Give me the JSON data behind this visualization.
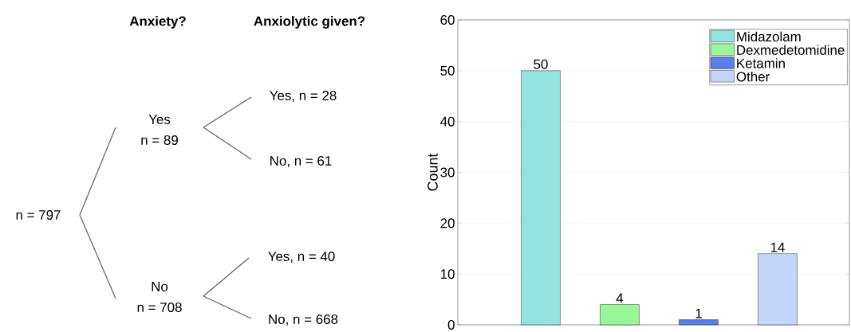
{
  "chart_data": [
    {
      "type": "other",
      "annotations": [
        "Anxiety?",
        "Anxiolytic given?",
        "n = 797",
        "Yes",
        "n = 89",
        "Yes, n = 28",
        "No, n = 61",
        "No",
        "n = 708",
        "Yes, n = 40",
        "No, n = 668"
      ]
    },
    {
      "type": "bar",
      "ylabel": "Count",
      "categories": [
        null,
        null,
        null,
        null
      ],
      "series": [
        {
          "name": "Midazolam",
          "color": "#94e3df",
          "values": [
            50,
            null,
            null,
            null
          ]
        },
        {
          "name": "Dexmedetomidine",
          "color": "#98f598",
          "values": [
            null,
            4,
            null,
            null
          ]
        },
        {
          "name": "Ketamin",
          "color": "#5a7de8",
          "values": [
            null,
            null,
            1,
            null
          ]
        },
        {
          "name": "Other",
          "color": "#c5d6fb",
          "values": [
            null,
            null,
            null,
            14
          ]
        }
      ],
      "ylim": [
        0,
        60
      ],
      "yticks": [
        0,
        10,
        20,
        30,
        40,
        50,
        60
      ],
      "grid": "y",
      "legend": "top right",
      "data_labels": true
    }
  ]
}
